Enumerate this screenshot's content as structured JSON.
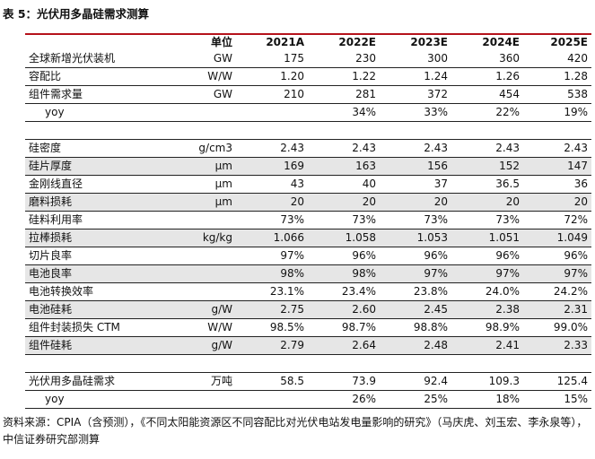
{
  "caption": "表 5：光伏用多晶硅需求测算",
  "columns": [
    "",
    "单位",
    "2021A",
    "2022E",
    "2023E",
    "2024E",
    "2025E"
  ],
  "rows": [
    {
      "name": "全球新增光伏装机",
      "unit": "GW",
      "values": [
        "175",
        "230",
        "300",
        "360",
        "420"
      ],
      "shaded": false,
      "indent": false
    },
    {
      "name": "容配比",
      "unit": "W/W",
      "values": [
        "1.20",
        "1.22",
        "1.24",
        "1.26",
        "1.28"
      ],
      "shaded": false,
      "indent": false
    },
    {
      "name": "组件需求量",
      "unit": "GW",
      "values": [
        "210",
        "281",
        "372",
        "454",
        "538"
      ],
      "shaded": false,
      "indent": false
    },
    {
      "name": "yoy",
      "unit": "",
      "values": [
        "",
        "34%",
        "33%",
        "22%",
        "19%"
      ],
      "shaded": false,
      "indent": true
    },
    {
      "name": "",
      "unit": "",
      "values": [
        "",
        "",
        "",
        "",
        ""
      ],
      "shaded": false,
      "indent": false,
      "spacer": true
    },
    {
      "name": "硅密度",
      "unit": "g/cm3",
      "values": [
        "2.43",
        "2.43",
        "2.43",
        "2.43",
        "2.43"
      ],
      "shaded": false,
      "indent": false
    },
    {
      "name": "硅片厚度",
      "unit": "μm",
      "values": [
        "169",
        "163",
        "156",
        "152",
        "147"
      ],
      "shaded": true,
      "indent": false
    },
    {
      "name": "金刚线直径",
      "unit": "μm",
      "values": [
        "43",
        "40",
        "37",
        "36.5",
        "36"
      ],
      "shaded": false,
      "indent": false
    },
    {
      "name": "磨料损耗",
      "unit": "μm",
      "values": [
        "20",
        "20",
        "20",
        "20",
        "20"
      ],
      "shaded": true,
      "indent": false
    },
    {
      "name": "硅料利用率",
      "unit": "",
      "values": [
        "73%",
        "73%",
        "73%",
        "73%",
        "72%"
      ],
      "shaded": false,
      "indent": false
    },
    {
      "name": "拉棒损耗",
      "unit": "kg/kg",
      "values": [
        "1.066",
        "1.058",
        "1.053",
        "1.051",
        "1.049"
      ],
      "shaded": true,
      "indent": false
    },
    {
      "name": "切片良率",
      "unit": "",
      "values": [
        "97%",
        "96%",
        "96%",
        "96%",
        "96%"
      ],
      "shaded": false,
      "indent": false
    },
    {
      "name": "电池良率",
      "unit": "",
      "values": [
        "98%",
        "98%",
        "97%",
        "97%",
        "97%"
      ],
      "shaded": true,
      "indent": false
    },
    {
      "name": "电池转换效率",
      "unit": "",
      "values": [
        "23.1%",
        "23.4%",
        "23.8%",
        "24.0%",
        "24.2%"
      ],
      "shaded": false,
      "indent": false
    },
    {
      "name": "电池硅耗",
      "unit": "g/W",
      "values": [
        "2.75",
        "2.60",
        "2.45",
        "2.38",
        "2.31"
      ],
      "shaded": true,
      "indent": false
    },
    {
      "name": "组件封装损失 CTM",
      "unit": "W/W",
      "values": [
        "98.5%",
        "98.7%",
        "98.8%",
        "98.9%",
        "99.0%"
      ],
      "shaded": false,
      "indent": false
    },
    {
      "name": "组件硅耗",
      "unit": "g/W",
      "values": [
        "2.79",
        "2.64",
        "2.48",
        "2.41",
        "2.33"
      ],
      "shaded": true,
      "indent": false
    },
    {
      "name": "",
      "unit": "",
      "values": [
        "",
        "",
        "",
        "",
        ""
      ],
      "shaded": false,
      "indent": false,
      "spacer": true
    },
    {
      "name": "光伏用多晶硅需求",
      "unit": "万吨",
      "values": [
        "58.5",
        "73.9",
        "92.4",
        "109.3",
        "125.4"
      ],
      "shaded": false,
      "indent": false
    },
    {
      "name": "yoy",
      "unit": "",
      "values": [
        "",
        "26%",
        "25%",
        "18%",
        "15%"
      ],
      "shaded": false,
      "indent": true
    }
  ],
  "source": "资料来源：CPIA（含预测），《不同太阳能资源区不同容配比对光伏电站发电量影响的研究》（马庆虎、刘玉宏、李永泉等），中信证券研究部测算"
}
